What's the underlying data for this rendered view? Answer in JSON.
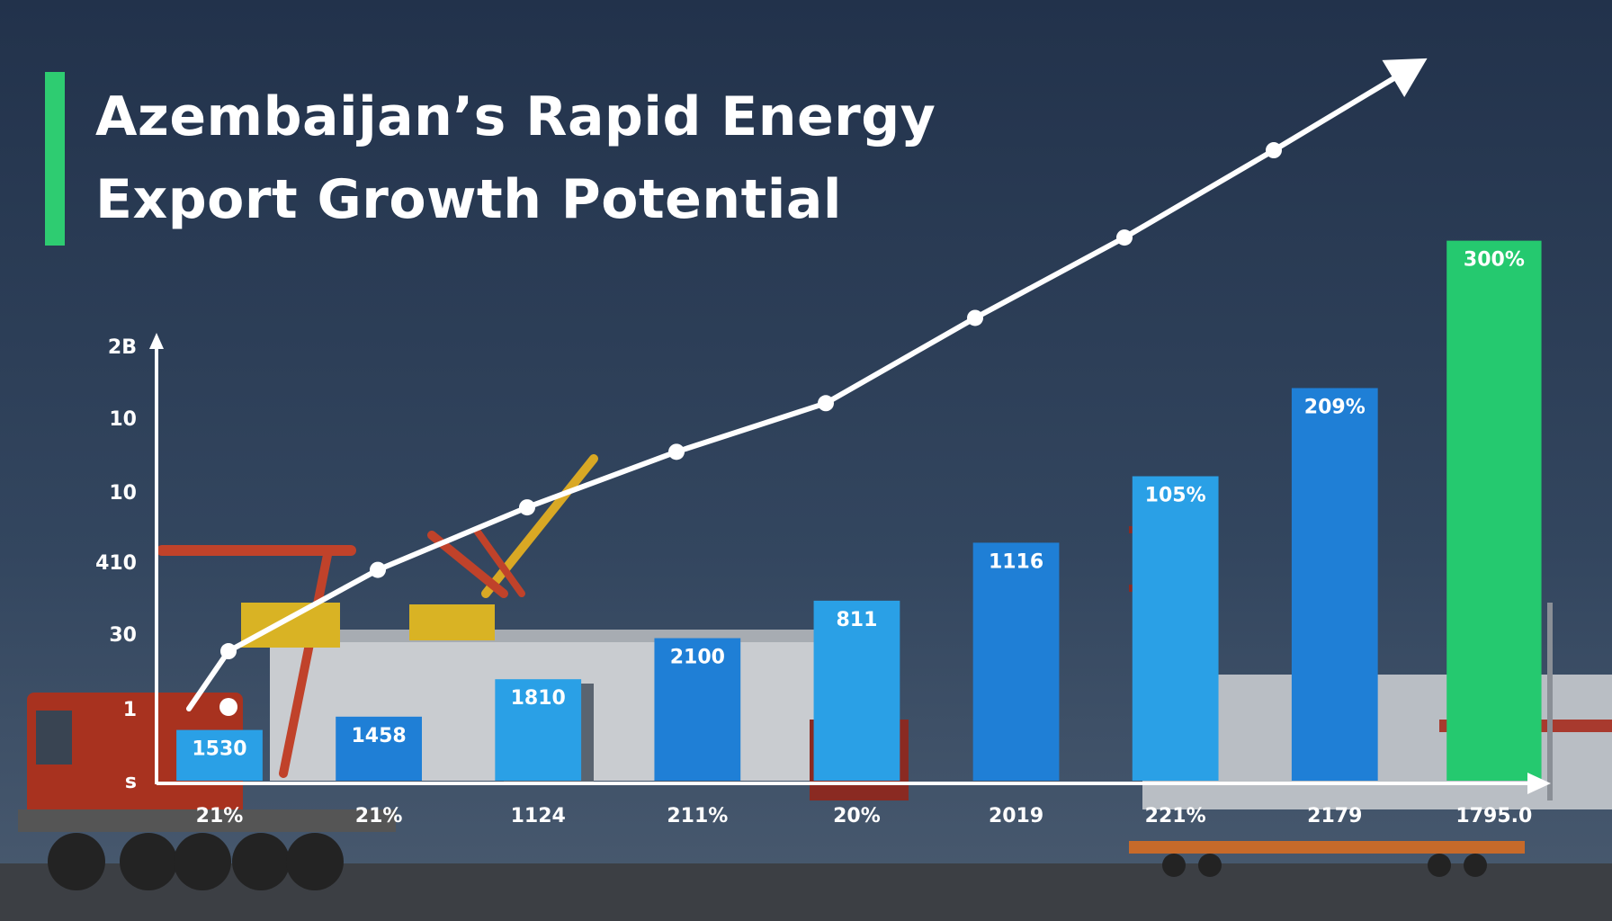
{
  "title": {
    "line1": "Azembaijan’s Rapid Energy",
    "line2": "Export Growth Potential"
  },
  "colors": {
    "accent": "#2ecc71",
    "bar_blue_dark": "#1f7fd6",
    "bar_blue_light": "#2aa0e6",
    "bar_green": "#25c96f",
    "sky_top": "#24344d",
    "sky_bottom": "#3a4c66",
    "line": "#ffffff"
  },
  "chart_data": {
    "type": "bar",
    "categories": [
      "21%",
      "21%",
      "1124",
      "211%",
      "20%",
      "2019",
      "221%",
      "2179",
      "1795.0"
    ],
    "values": [
      42,
      53,
      84,
      118,
      149,
      197,
      252,
      325,
      447
    ],
    "bar_labels": [
      "1530",
      "1458",
      "1810",
      "2100",
      "811",
      "1116",
      "105%",
      "209%",
      "300%"
    ],
    "highlight_index": 8,
    "trend_line": [
      10,
      68,
      150,
      213,
      269,
      318,
      404,
      485,
      573,
      661
    ],
    "yticks": [
      "s",
      "1",
      "30",
      "410",
      "10",
      "10",
      "2B"
    ],
    "ylim": [
      0,
      475
    ],
    "grid": false
  }
}
